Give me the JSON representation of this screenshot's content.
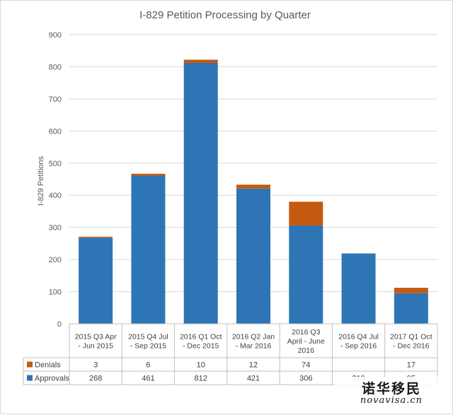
{
  "chart_data": {
    "type": "bar",
    "stacked": true,
    "title": "I-829 Petition Processing by Quarter",
    "ylabel": "I-829 Petitions",
    "ylim": [
      0,
      900
    ],
    "yticks": [
      0,
      100,
      200,
      300,
      400,
      500,
      600,
      700,
      800,
      900
    ],
    "grid": true,
    "legend": "data-table",
    "categories": [
      [
        "2015 Q3 Apr",
        "- Jun 2015"
      ],
      [
        "2015 Q4 Jul",
        "- Sep 2015"
      ],
      [
        "2016 Q1 Oct",
        "- Dec 2015"
      ],
      [
        "2016 Q2 Jan",
        "- Mar 2016"
      ],
      [
        "2016 Q3",
        "April - June",
        "2016"
      ],
      [
        "2016 Q4 Jul",
        "- Sep 2016"
      ],
      [
        "2017 Q1 Oct",
        "- Dec 2016"
      ]
    ],
    "series": [
      {
        "name": "Approvals",
        "color": "#2e75b6",
        "values": [
          268,
          461,
          812,
          421,
          306,
          219,
          95
        ]
      },
      {
        "name": "Denials",
        "color": "#c55a11",
        "values": [
          3,
          6,
          10,
          12,
          74,
          null,
          17
        ]
      }
    ],
    "table_rows": [
      "Denials",
      "Approvals"
    ]
  },
  "watermark": {
    "name": "诺华移民",
    "url": "novavisa.cn"
  }
}
